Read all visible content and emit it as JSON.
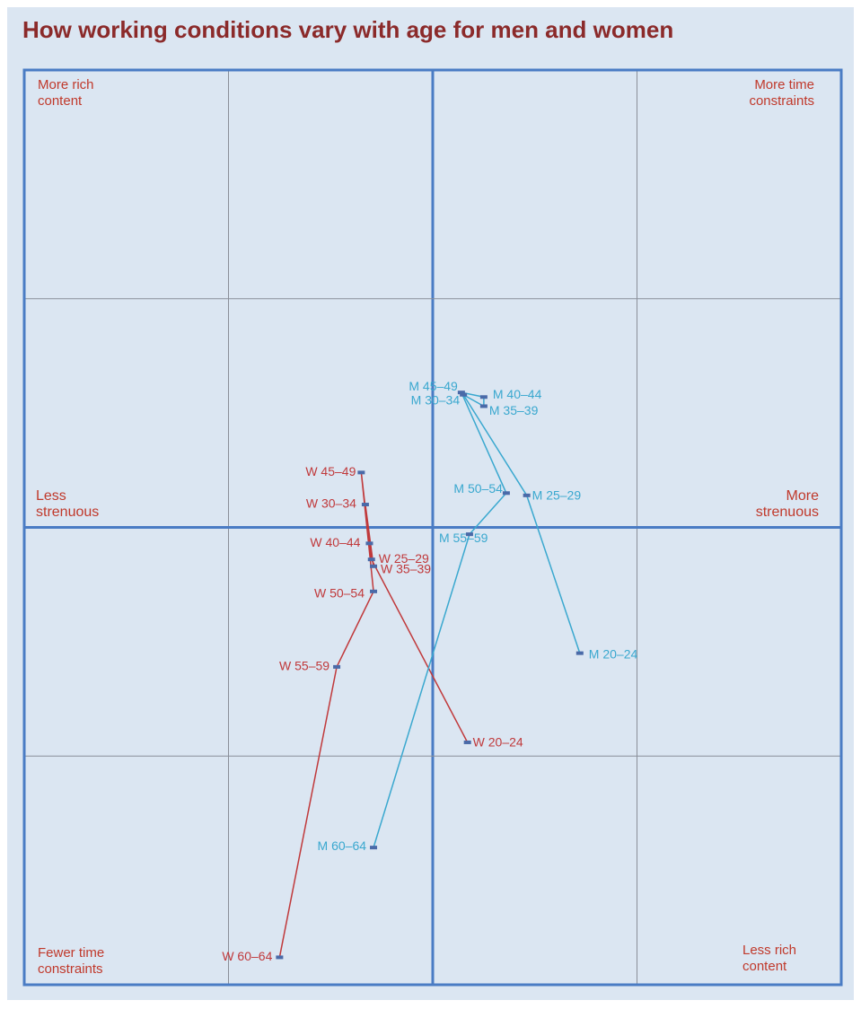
{
  "chart_data": {
    "type": "line",
    "title": "How working conditions vary with age for men and women",
    "quadrant_labels": {
      "top_left": "More rich content",
      "top_right": "More time constraints",
      "left": "Less strenuous",
      "right": "More strenuous",
      "bottom_left": "Fewer time constraints",
      "bottom_right": "Less rich content"
    },
    "xlim": [
      -2,
      2
    ],
    "ylim": [
      -2,
      2
    ],
    "xticks": [
      -1,
      0,
      1
    ],
    "yticks": [
      -1,
      0,
      1
    ],
    "grid": true,
    "series": [
      {
        "color": "#c0393b",
        "labels": [
          "W 20–24",
          "W 25–29",
          "W 30–34",
          "W 35–39",
          "W 40–44",
          "W 45–49",
          "W 50–54",
          "W 55–59",
          "W 60–64"
        ],
        "x": [
          0.17,
          -0.3,
          -0.33,
          -0.29,
          -0.31,
          -0.35,
          -0.29,
          -0.47,
          -0.75
        ],
        "values": [
          -0.94,
          -0.14,
          0.1,
          -0.17,
          -0.07,
          0.24,
          -0.28,
          -0.61,
          -1.88
        ]
      },
      {
        "color": "#3aa8cf",
        "labels": [
          "M 20–24",
          "M 25–29",
          "M 30–34",
          "M 35–39",
          "M 40–44",
          "M 45–49",
          "M 50–54",
          "M 55–59",
          "M 60–64"
        ],
        "x": [
          0.72,
          0.46,
          0.15,
          0.25,
          0.25,
          0.14,
          0.36,
          0.18,
          -0.29
        ],
        "values": [
          -0.55,
          0.14,
          0.58,
          0.53,
          0.57,
          0.59,
          0.15,
          -0.03,
          -1.4
        ]
      }
    ]
  }
}
